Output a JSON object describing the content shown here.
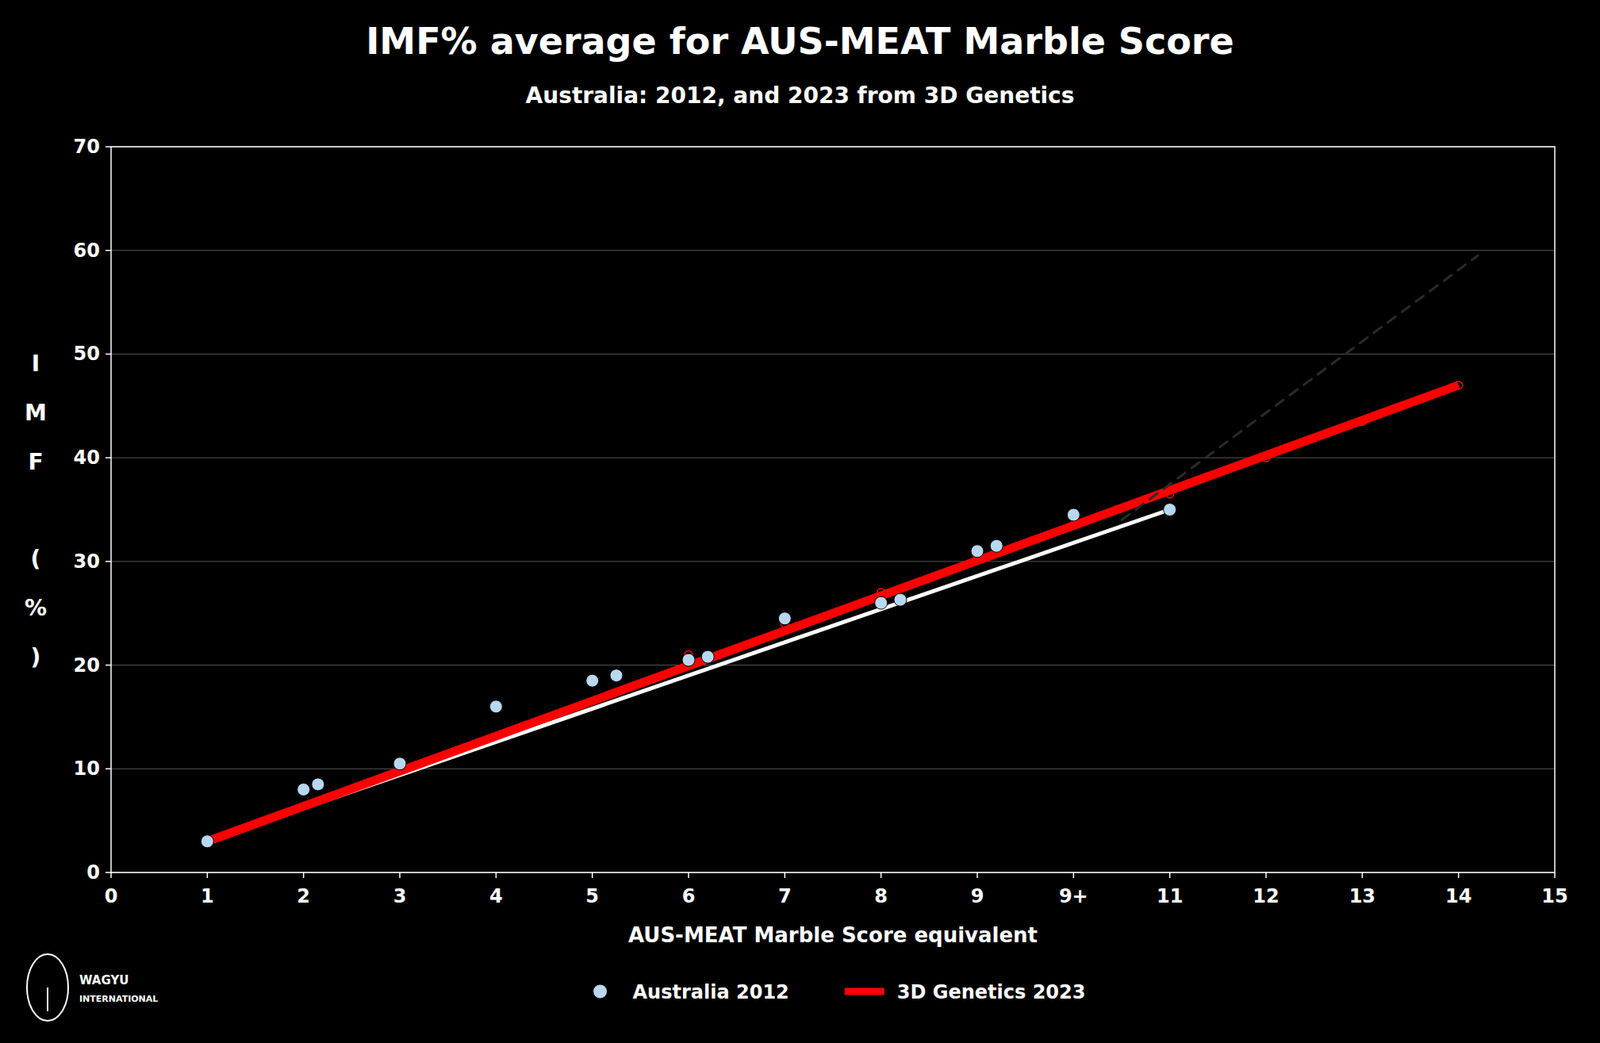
{
  "chart_data": {
    "type": "scatter",
    "title": "IMF% average for AUS-MEAT Marble Score",
    "subtitle": "Australia: 2012, and 2023 from 3D Genetics",
    "xlabel": "AUS-MEAT Marble Score equivalent",
    "ylabel": "IMF (%)",
    "annotations": [
      "WAGYU",
      "INTERNATIONAL"
    ],
    "xlim": [
      0,
      15
    ],
    "ylim": [
      0,
      70
    ],
    "xticks": [
      0,
      1,
      2,
      3,
      4,
      5,
      6,
      7,
      8,
      9,
      {
        "value": 10,
        "label": "9+"
      },
      11,
      12,
      13,
      14,
      15
    ],
    "yticks": [
      0,
      10,
      20,
      30,
      40,
      50,
      60,
      70
    ],
    "grid": true,
    "legend": "bottom",
    "series": [
      {
        "name": "Australia 2012",
        "type": "scatter",
        "marker": "circle",
        "color": "#b8d8f0",
        "x": [
          1,
          2,
          2.15,
          3,
          4,
          5,
          5.25,
          6,
          6.2,
          7,
          8,
          8.2,
          9,
          9.2,
          10,
          11
        ],
        "values": [
          3.0,
          8.0,
          8.5,
          10.5,
          16.0,
          18.5,
          19.0,
          20.5,
          20.8,
          24.5,
          26.0,
          26.3,
          31.0,
          31.5,
          34.5,
          35.0
        ]
      },
      {
        "type": "line",
        "line_style": "solid",
        "color": "#ffffff",
        "x": [
          1,
          11
        ],
        "values": [
          3.0,
          35.0
        ]
      },
      {
        "name": "3D Genetics 2023",
        "type": "line",
        "line_style": "solid",
        "color": "#ff0000",
        "x": [
          1,
          14
        ],
        "values": [
          3.0,
          47.0
        ]
      },
      {
        "type": "scatter",
        "marker": "open-circle",
        "color": "#ff0000",
        "x": [
          5,
          6,
          7,
          8,
          9,
          10,
          11,
          12,
          13,
          14
        ],
        "values": [
          18.5,
          21.0,
          24.0,
          27.0,
          30.5,
          33.5,
          36.5,
          40.0,
          43.5,
          47.0
        ]
      },
      {
        "type": "line",
        "line_style": "dashed",
        "color": "#2a2a2a",
        "x": [
          10.5,
          14.2
        ],
        "values": [
          34.0,
          59.5
        ]
      }
    ]
  }
}
